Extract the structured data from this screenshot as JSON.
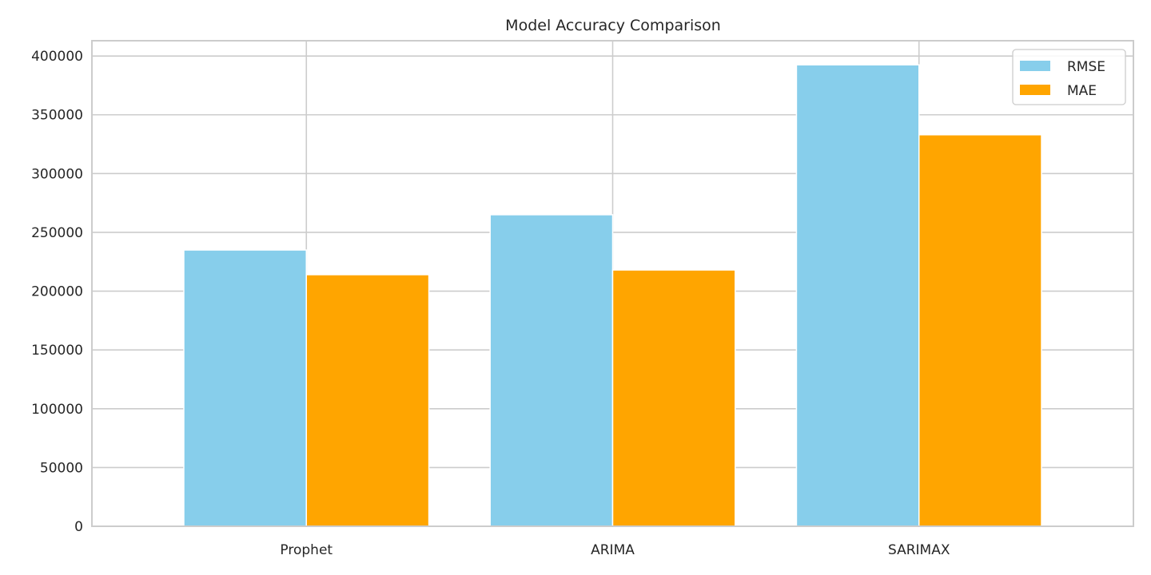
{
  "chart_data": {
    "type": "bar",
    "title": "Model Accuracy Comparison",
    "xlabel": "",
    "ylabel": "",
    "categories": [
      "Prophet",
      "ARIMA",
      "SARIMAX"
    ],
    "series": [
      {
        "name": "RMSE",
        "values": [
          235000,
          265000,
          392500
        ],
        "color": "#87ceeb"
      },
      {
        "name": "MAE",
        "values": [
          214000,
          218000,
          333000
        ],
        "color": "#ffa500"
      }
    ],
    "ylim": [
      0,
      413000
    ],
    "yticks": [
      0,
      50000,
      100000,
      150000,
      200000,
      250000,
      300000,
      350000,
      400000
    ],
    "ytick_labels": [
      "0",
      "50000",
      "100000",
      "150000",
      "200000",
      "250000",
      "300000",
      "350000",
      "400000"
    ],
    "grid": true,
    "legend_position": "top-right"
  }
}
